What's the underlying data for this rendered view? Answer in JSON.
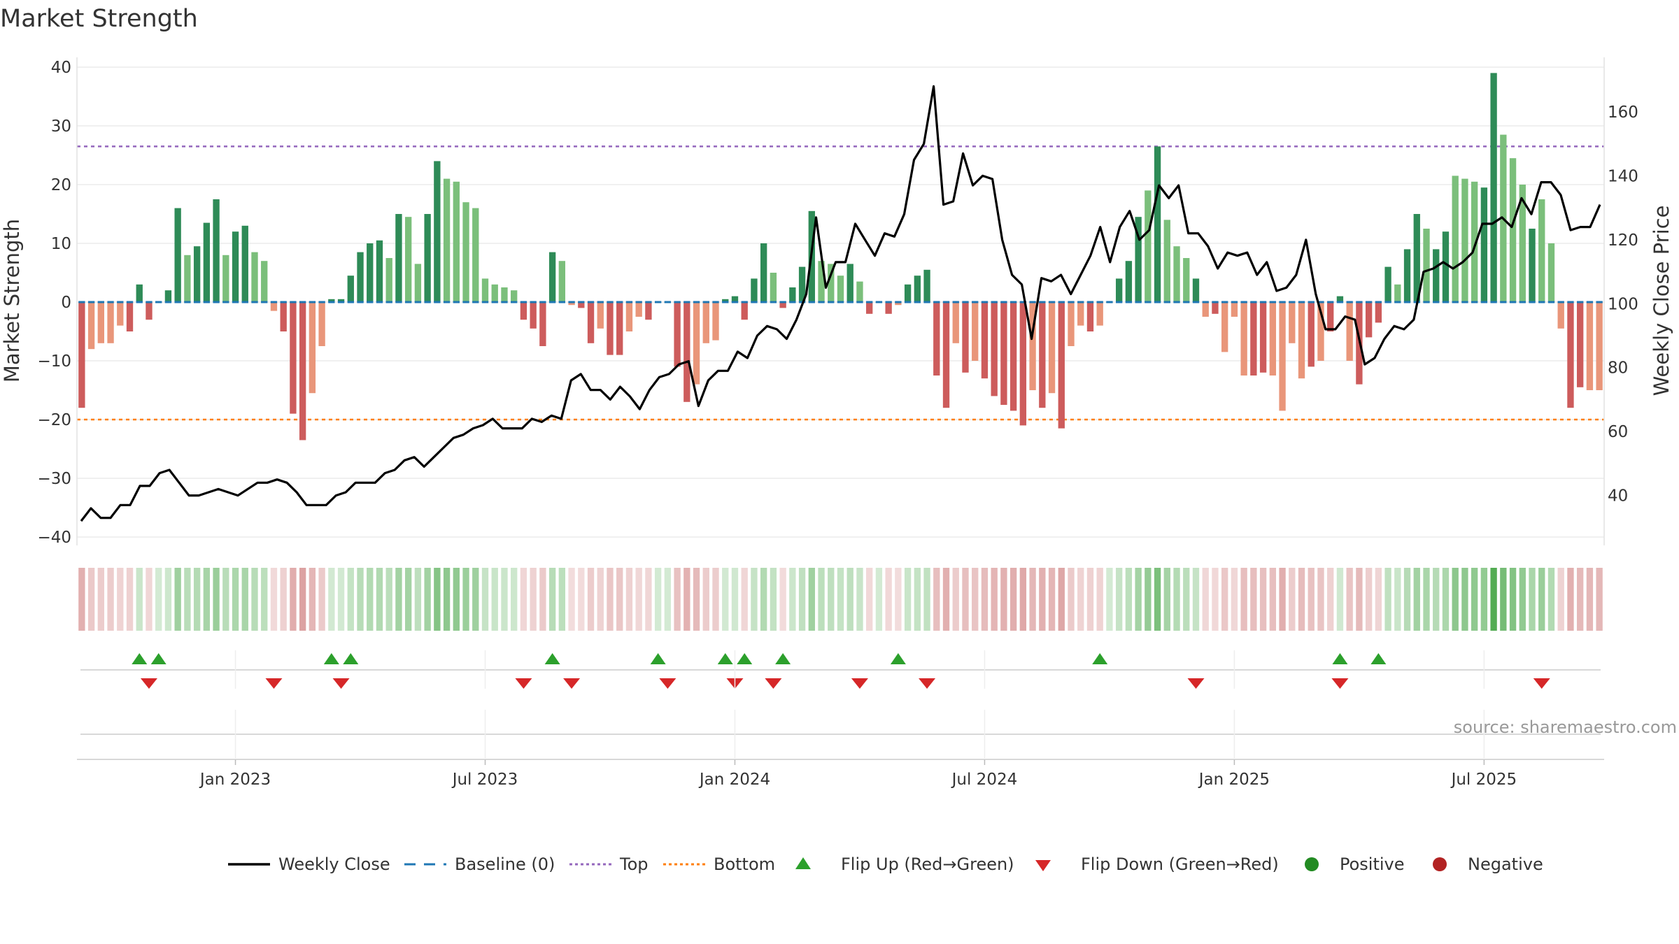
{
  "chart_data": {
    "type": "bar",
    "title": "Market Strength",
    "ylabel_left": "Market Strength",
    "ylabel_right": "Weekly Close Price",
    "source": "source: sharemaestro.com",
    "ylim_left": [
      -40,
      40
    ],
    "yticks_left": [
      40,
      30,
      20,
      10,
      0,
      -10,
      -20,
      -30,
      -40
    ],
    "yticks_left_labels": [
      "40",
      "30",
      "20",
      "10",
      "0",
      "−10",
      "−20",
      "−30",
      "−40"
    ],
    "ylim_right": [
      27,
      174
    ],
    "yticks_right": [
      160,
      140,
      120,
      100,
      80,
      60,
      40
    ],
    "x_ticks": [
      {
        "label": "Jan 2023",
        "week": 16
      },
      {
        "label": "Jul 2023",
        "week": 42
      },
      {
        "label": "Jan 2024",
        "week": 68
      },
      {
        "label": "Jul 2024",
        "week": 94
      },
      {
        "label": "Jan 2025",
        "week": 120
      },
      {
        "label": "Jul 2025",
        "week": 146
      }
    ],
    "top_line": 26.5,
    "bottom_line": -20,
    "grid": true,
    "colors": {
      "dark_green": "#2e8b57",
      "light_green": "#7bbf7b",
      "dark_red": "#cd5c5c",
      "light_red": "#e9967a",
      "price": "#000000",
      "baseline": "#1f77b4",
      "top": "#9467bd",
      "bottom": "#ff7f0e",
      "flip_up": "#2ca02c",
      "flip_down": "#d62728",
      "positive": "#228b22",
      "negative": "#b22222"
    },
    "strength": [
      -18,
      -8,
      -7,
      -7,
      -4,
      -5,
      3,
      -3,
      0,
      2,
      16,
      8,
      9.5,
      13.5,
      17.5,
      8,
      12,
      13,
      8.5,
      7,
      -1.5,
      -5,
      -19,
      -23.5,
      -15.5,
      -7.5,
      0.5,
      0.5,
      4.5,
      8.5,
      10,
      10.5,
      7.5,
      15,
      14.5,
      6.5,
      15,
      24,
      21,
      20.5,
      17,
      16,
      4,
      3,
      2.5,
      2,
      -3,
      -4.5,
      -7.5,
      8.5,
      7,
      -0.5,
      -1,
      -7,
      -4.5,
      -9,
      -9,
      -5,
      -2.5,
      -3,
      0,
      0,
      -11,
      -17,
      -14,
      -7,
      -6.5,
      0.5,
      1,
      -3,
      4,
      10,
      5,
      -1,
      2.5,
      6,
      15.5,
      7,
      6.5,
      4.5,
      6.5,
      3.5,
      -2,
      0,
      -2,
      -0.5,
      3,
      4.5,
      5.5,
      -12.5,
      -18,
      -7,
      -12,
      -10,
      -13,
      -16,
      -17.5,
      -18.5,
      -21,
      -15,
      -18,
      -15.5,
      -21.5,
      -7.5,
      -4,
      -5,
      -4,
      0,
      4,
      7,
      14.5,
      19,
      26.5,
      14,
      9.5,
      7.5,
      4,
      -2.5,
      -2,
      -8.5,
      -2.5,
      -12.5,
      -12.5,
      -12,
      -12.5,
      -18.5,
      -7,
      -13,
      -11,
      -10,
      -5,
      1,
      -10,
      -14,
      -6,
      -3.5,
      6,
      3,
      9,
      15,
      12.5,
      9,
      12,
      21.5,
      21,
      20.5,
      19.5,
      39,
      28.5,
      24.5,
      20,
      12.5,
      17.5,
      10,
      -4.5,
      -18,
      -14.5,
      -15,
      -15
    ],
    "strength_shade": [
      "d",
      "l",
      "l",
      "l",
      "l",
      "d",
      "d",
      "d",
      "d",
      "d",
      "d",
      "l",
      "d",
      "d",
      "d",
      "l",
      "d",
      "d",
      "l",
      "l",
      "l",
      "d",
      "d",
      "d",
      "l",
      "l",
      "d",
      "d",
      "d",
      "d",
      "d",
      "d",
      "l",
      "d",
      "l",
      "l",
      "d",
      "d",
      "l",
      "l",
      "l",
      "l",
      "l",
      "l",
      "l",
      "l",
      "d",
      "d",
      "d",
      "d",
      "l",
      "l",
      "d",
      "d",
      "l",
      "d",
      "d",
      "l",
      "l",
      "d",
      "d",
      "d",
      "d",
      "d",
      "l",
      "l",
      "l",
      "d",
      "d",
      "d",
      "d",
      "d",
      "l",
      "d",
      "d",
      "d",
      "d",
      "l",
      "l",
      "l",
      "d",
      "l",
      "d",
      "d",
      "d",
      "l",
      "d",
      "d",
      "d",
      "d",
      "d",
      "l",
      "d",
      "l",
      "d",
      "d",
      "d",
      "d",
      "d",
      "l",
      "d",
      "l",
      "d",
      "l",
      "l",
      "d",
      "l",
      "d",
      "d",
      "d",
      "d",
      "l",
      "d",
      "l",
      "l",
      "l",
      "d",
      "l",
      "d",
      "l",
      "l",
      "l",
      "d",
      "d",
      "l",
      "l",
      "l",
      "l",
      "d",
      "l",
      "d",
      "d",
      "l",
      "d",
      "d",
      "d",
      "d",
      "l",
      "d",
      "d",
      "l",
      "d",
      "d",
      "l",
      "l",
      "l",
      "d",
      "d",
      "l",
      "l",
      "l",
      "d",
      "l",
      "l",
      "l",
      "d",
      "d",
      "l"
    ],
    "price": [
      32,
      36,
      33,
      33,
      37,
      37,
      43,
      43,
      47,
      48,
      44,
      40,
      40,
      41,
      42,
      41,
      40,
      42,
      44,
      44,
      45,
      44,
      41,
      37,
      37,
      37,
      40,
      41,
      44,
      44,
      44,
      47,
      48,
      51,
      52,
      49,
      52,
      55,
      58,
      59,
      61,
      62,
      64,
      61,
      61,
      61,
      64,
      63,
      65,
      64,
      76,
      78,
      73,
      73,
      70,
      74,
      71,
      67,
      73,
      77,
      78,
      81,
      82,
      68,
      76,
      79,
      79,
      85,
      83,
      90,
      93,
      92,
      89,
      95,
      103,
      127,
      105,
      113,
      113,
      125,
      120,
      115,
      122,
      121,
      128,
      145,
      150,
      168,
      131,
      132,
      147,
      137,
      140,
      139,
      120,
      109,
      106,
      89,
      108,
      107,
      109,
      103,
      109,
      115,
      124,
      113,
      124,
      129,
      120,
      123,
      137,
      133,
      137,
      122,
      122,
      118,
      111,
      116,
      115,
      116,
      109,
      113,
      104,
      105,
      109,
      120,
      103,
      92,
      92,
      96,
      95,
      81,
      83,
      89,
      93,
      92,
      95,
      110,
      111,
      113,
      111,
      113,
      116,
      125,
      125,
      127,
      124,
      133,
      128,
      138,
      138,
      134,
      123,
      124,
      124,
      131
    ],
    "heat_strip": [
      -18,
      -8,
      -7,
      -7,
      -4,
      -5,
      3,
      -3,
      0,
      2,
      16,
      8,
      9.5,
      13.5,
      17.5,
      8,
      12,
      13,
      8.5,
      7,
      -1.5,
      -5,
      -19,
      -23.5,
      -15.5,
      -7.5,
      0.5,
      0.5,
      4.5,
      8.5,
      10,
      10.5,
      7.5,
      15,
      14.5,
      6.5,
      15,
      24,
      21,
      20.5,
      17,
      16,
      4,
      3,
      2.5,
      2,
      -3,
      -4.5,
      -7.5,
      8.5,
      7,
      -0.5,
      -1,
      -7,
      -4.5,
      -9,
      -9,
      -5,
      -2.5,
      -3,
      0,
      0,
      -11,
      -17,
      -14,
      -7,
      -6.5,
      0.5,
      1,
      -3,
      4,
      10,
      5,
      -1,
      2.5,
      6,
      15.5,
      7,
      6.5,
      4.5,
      6.5,
      3.5,
      -2,
      0,
      -2,
      -0.5,
      3,
      4.5,
      5.5,
      -12.5,
      -18,
      -7,
      -12,
      -10,
      -13,
      -16,
      -17.5,
      -18.5,
      -21,
      -15,
      -18,
      -15.5,
      -21.5,
      -7.5,
      -4,
      -5,
      -4,
      0,
      4,
      7,
      14.5,
      19,
      26.5,
      14,
      9.5,
      7.5,
      4,
      -2.5,
      -2,
      -8.5,
      -2.5,
      -12.5,
      -12.5,
      -12,
      -12.5,
      -18.5,
      -7,
      -13,
      -11,
      -10,
      -5,
      1,
      -10,
      -14,
      -6,
      -3.5,
      6,
      3,
      9,
      15,
      12.5,
      9,
      12,
      21.5,
      21,
      20.5,
      19.5,
      39,
      28.5,
      24.5,
      20,
      12.5,
      17.5,
      10,
      -4.5,
      -18,
      -14.5,
      -15,
      -15
    ],
    "flip_up_weeks": [
      6,
      8,
      26,
      28,
      49,
      60,
      67,
      69,
      73,
      85,
      106,
      131,
      135
    ],
    "flip_down_weeks": [
      7,
      20,
      27,
      46,
      51,
      61,
      68,
      72,
      81,
      88,
      116,
      131,
      152
    ],
    "legend": [
      {
        "label": "Weekly Close",
        "kind": "line",
        "color": "#000000"
      },
      {
        "label": "Baseline (0)",
        "kind": "dash",
        "color": "#1f77b4"
      },
      {
        "label": "Top",
        "kind": "dot",
        "color": "#9467bd"
      },
      {
        "label": "Bottom",
        "kind": "dot",
        "color": "#ff7f0e"
      },
      {
        "label": "Flip Up (Red→Green)",
        "kind": "tri-up",
        "color": "#2ca02c"
      },
      {
        "label": "Flip Down (Green→Red)",
        "kind": "tri-down",
        "color": "#d62728"
      },
      {
        "label": "Positive",
        "kind": "circle",
        "color": "#228b22"
      },
      {
        "label": "Negative",
        "kind": "circle",
        "color": "#b22222"
      }
    ]
  }
}
